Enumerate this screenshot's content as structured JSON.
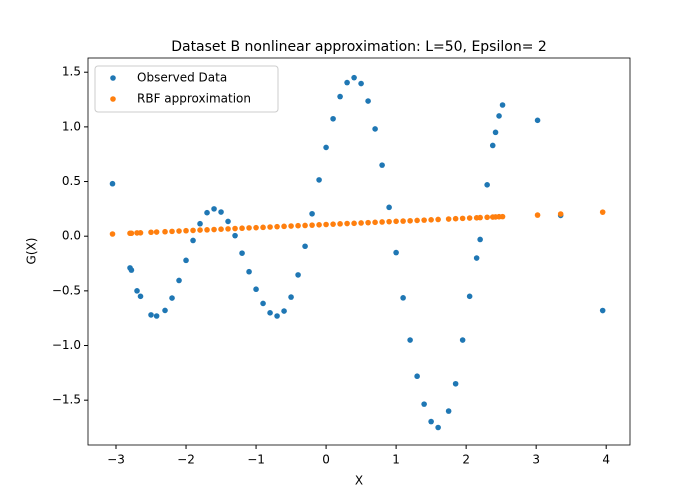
{
  "chart_data": {
    "type": "scatter",
    "title": "Dataset B nonlinear approximation: L=50, Epsilon= 2",
    "x_label": "X",
    "y_label": "G(X)",
    "x": [
      -3.05,
      -2.8,
      -2.78,
      -2.7,
      -2.65,
      -2.5,
      -2.42,
      -2.3,
      -2.2,
      -2.1,
      -2.0,
      -1.9,
      -1.8,
      -1.7,
      -1.6,
      -1.5,
      -1.4,
      -1.3,
      -1.2,
      -1.1,
      -1.0,
      -0.9,
      -0.8,
      -0.7,
      -0.6,
      -0.5,
      -0.4,
      -0.3,
      -0.2,
      -0.1,
      0,
      0.1,
      0.2,
      0.3,
      0.4,
      0.5,
      0.6,
      0.7,
      0.8,
      0.9,
      1.0,
      1.1,
      1.2,
      1.3,
      1.4,
      1.5,
      1.6,
      1.75,
      1.85,
      1.95,
      2.05,
      2.15,
      2.2,
      2.3,
      2.38,
      2.42,
      2.47,
      2.52,
      3.02,
      3.35,
      3.95
    ],
    "series": [
      {
        "name": "Observed Data",
        "color": "#1f77b4",
        "values": [
          0.48,
          -0.29,
          -0.31,
          -0.5,
          -0.55,
          -0.72,
          -0.73,
          -0.679,
          -0.566,
          -0.405,
          -0.221,
          -0.039,
          0.114,
          0.215,
          0.25,
          0.221,
          0.135,
          0.005,
          -0.155,
          -0.325,
          -0.485,
          -0.615,
          -0.701,
          -0.73,
          -0.685,
          -0.557,
          -0.354,
          -0.092,
          0.205,
          0.515,
          0.812,
          1.074,
          1.277,
          1.405,
          1.45,
          1.396,
          1.236,
          0.981,
          0.65,
          0.264,
          -0.15,
          -0.564,
          -0.95,
          -1.281,
          -1.536,
          -1.696,
          -1.75,
          -1.6,
          -1.35,
          -0.95,
          -0.55,
          -0.2,
          -0.03,
          0.47,
          0.83,
          0.95,
          1.1,
          1.2,
          1.06,
          0.19,
          -0.68
        ]
      },
      {
        "name": "RBF approximation",
        "color": "#ff7f0e",
        "values": [
          0.02,
          0.027,
          0.027,
          0.03,
          0.031,
          0.036,
          0.038,
          0.041,
          0.044,
          0.047,
          0.05,
          0.053,
          0.056,
          0.058,
          0.061,
          0.064,
          0.067,
          0.07,
          0.073,
          0.076,
          0.078,
          0.081,
          0.084,
          0.087,
          0.09,
          0.093,
          0.096,
          0.098,
          0.101,
          0.104,
          0.107,
          0.11,
          0.113,
          0.116,
          0.118,
          0.121,
          0.124,
          0.127,
          0.13,
          0.133,
          0.136,
          0.138,
          0.141,
          0.144,
          0.147,
          0.15,
          0.153,
          0.157,
          0.16,
          0.163,
          0.166,
          0.168,
          0.17,
          0.173,
          0.175,
          0.176,
          0.178,
          0.179,
          0.193,
          0.203,
          0.22
        ]
      }
    ],
    "xlim": [
      -3.4,
      4.34
    ],
    "xticks": [
      {
        "value": -3,
        "label": "−3"
      },
      {
        "value": -2,
        "label": "−2"
      },
      {
        "value": -1,
        "label": "−1"
      },
      0,
      1,
      2,
      3,
      4
    ],
    "ylim": [
      -1.91,
      1.63
    ],
    "yticks": [
      {
        "value": -1.5,
        "label": "−1.5"
      },
      {
        "value": -1.0,
        "label": "−1.0"
      },
      {
        "value": -0.5,
        "label": "−0.5"
      },
      {
        "value": 0,
        "label": "0.0"
      },
      0.5,
      {
        "value": 1.0,
        "label": "1.0"
      },
      1.5
    ],
    "legend": "upper left"
  }
}
